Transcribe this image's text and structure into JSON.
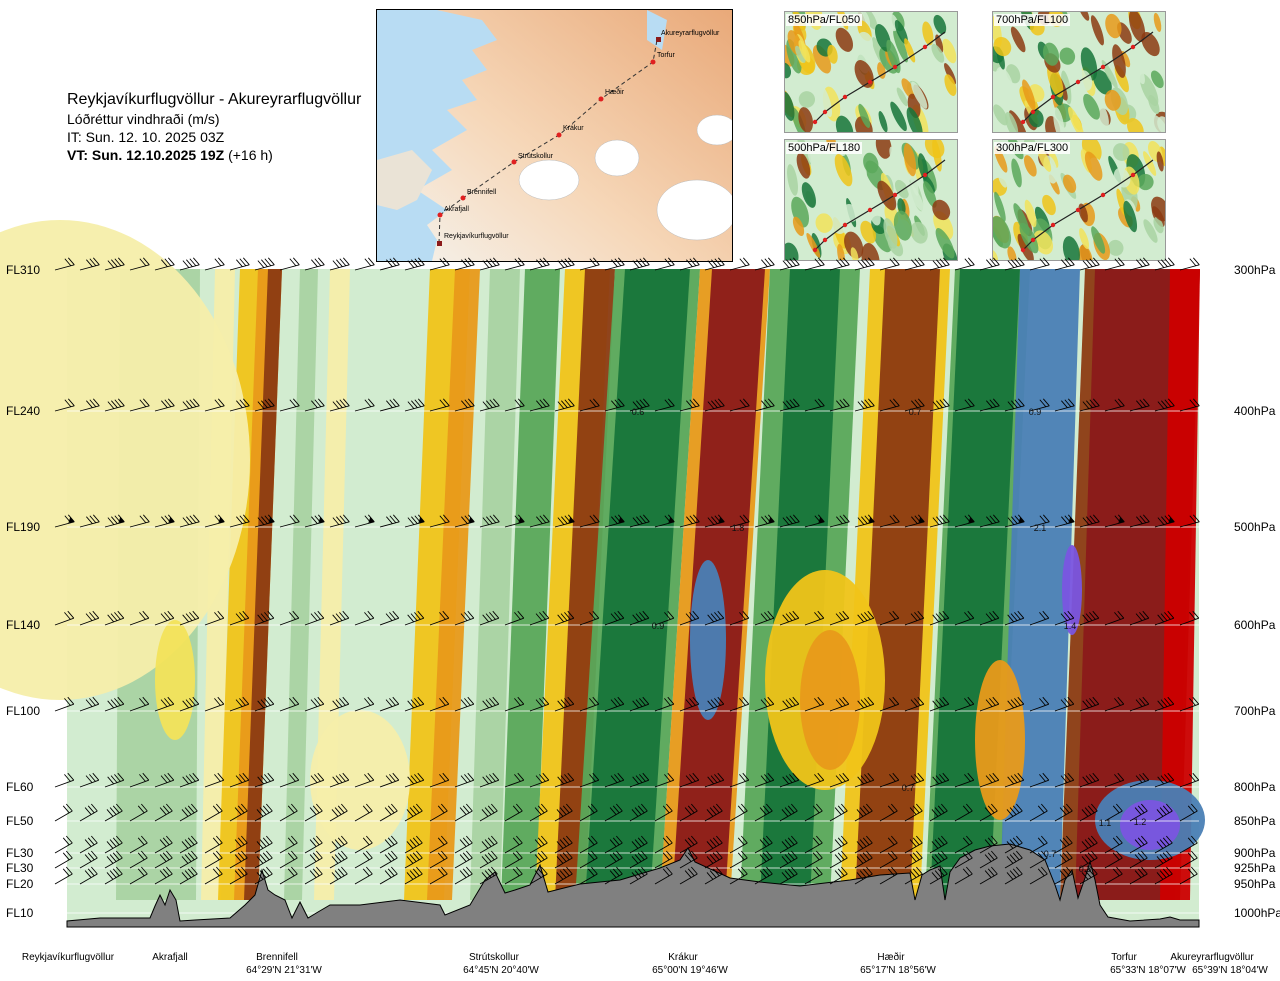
{
  "title": {
    "route": "Reykjavíkurflugvöllur - Akureyrarflugvöllur",
    "parameter": "Lóðréttur vindhraði (m/s)",
    "issue_time": "IT: Sun. 12. 10. 2025 03Z",
    "valid_prefix": "VT: Sun. 12.10.2025 19Z",
    "valid_offset": "(+16 h)"
  },
  "map": {
    "waypoints": [
      "Akureyrarflugvöllur",
      "Torfur",
      "Hæðir",
      "Krákur",
      "Strútskollur",
      "Brennifell",
      "Akrafjall",
      "Reykjavíkurflugvöllur"
    ]
  },
  "minimaps": [
    {
      "label": "850hPa/FL050"
    },
    {
      "label": "700hPa/FL100"
    },
    {
      "label": "500hPa/FL180"
    },
    {
      "label": "300hPa/FL300"
    }
  ],
  "colors": {
    "dark_red": "#8b1a1a",
    "red": "#cc0000",
    "brown": "#8c3b12",
    "orange": "#e89a1a",
    "gold": "#f0c419",
    "yellow": "#f2e35a",
    "pale_yellow": "#f5eeaa",
    "pale_green": "#d2ecd0",
    "light_green": "#a9d3a2",
    "mid_green": "#5aa85a",
    "green": "#1e8c2e",
    "dark_green": "#17753a",
    "steel_blue": "#4a7fb5",
    "violet": "#7a55e0",
    "terrain": "#808080"
  },
  "chart_data": {
    "type": "heatmap",
    "title": "Lóðréttur vindhraði (m/s)",
    "x_axis": {
      "stations": [
        {
          "name": "Reykjavíkurflugvöllur",
          "coord": ""
        },
        {
          "name": "Akrafjall",
          "coord": ""
        },
        {
          "name": "Brennifell",
          "coord": "64°29'N 21°31'W"
        },
        {
          "name": "Strútskollur",
          "coord": "64°45'N 20°40'W"
        },
        {
          "name": "Krákur",
          "coord": "65°00'N 19°46'W"
        },
        {
          "name": "Hæðir",
          "coord": "65°17'N 18°56'W"
        },
        {
          "name": "Torfur",
          "coord": "65°33'N 18°07'W"
        },
        {
          "name": "Akureyrarflugvöllur",
          "coord": "65°39'N 18°04'W"
        }
      ]
    },
    "y_axis_left": [
      "FL310",
      "FL240",
      "FL190",
      "FL140",
      "FL100",
      "FL60",
      "FL50",
      "FL30",
      "FL30",
      "FL20",
      "FL10"
    ],
    "y_axis_right": [
      "300hPa",
      "400hPa",
      "500hPa",
      "600hPa",
      "700hPa",
      "800hPa",
      "850hPa",
      "900hPa",
      "925hPa",
      "950hPa",
      "1000hPa"
    ],
    "value_labels": [
      {
        "text": "0.6",
        "fl": "FL240",
        "near": "Krákur"
      },
      {
        "text": "0.7",
        "fl": "FL240",
        "near": "Hæðir"
      },
      {
        "text": "0.9",
        "fl": "FL240",
        "near": "Torfur"
      },
      {
        "text": "1.8",
        "fl": "FL190",
        "near": "Krákur"
      },
      {
        "text": "2.1",
        "fl": "FL190",
        "near": "Torfur"
      },
      {
        "text": "0.9",
        "fl": "FL140",
        "near": "Krákur"
      },
      {
        "text": "1.4",
        "fl": "FL140",
        "near": "Torfur"
      },
      {
        "text": "0.7",
        "fl": "FL60",
        "near": "Hæðir"
      },
      {
        "text": "1.1",
        "fl": "FL50",
        "near": "Torfur"
      },
      {
        "text": "1.2",
        "fl": "FL50",
        "near": "Akureyrarflugvöllur"
      },
      {
        "text": "0.7",
        "fl": "FL30",
        "near": "Torfur"
      },
      {
        "text": "0.3",
        "fl": "FL30",
        "near": "Torfur"
      }
    ],
    "grid": true
  }
}
